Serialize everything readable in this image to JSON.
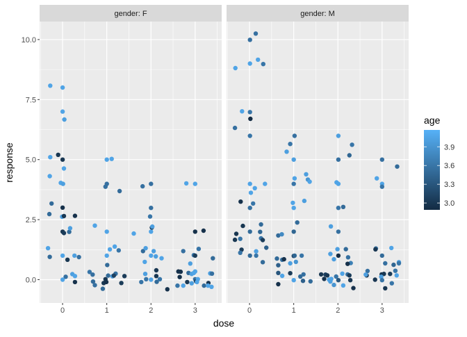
{
  "chart_data": {
    "type": "scatter",
    "xlabel": "dose",
    "ylabel": "response",
    "xlim": [
      -0.52,
      3.6
    ],
    "ylim": [
      -0.97,
      10.75
    ],
    "x_ticks": [
      "0",
      "1",
      "2",
      "3"
    ],
    "y_ticks": [
      "0.0",
      "2.5",
      "5.0",
      "7.5",
      "10.0"
    ],
    "grid": true,
    "legend": {
      "title": "age",
      "placement": "right",
      "range": [
        2.89,
        4.17
      ],
      "ticks": [
        "3.0",
        "3.3",
        "3.6",
        "3.9"
      ],
      "low_color": "#132B43",
      "high_color": "#56B1F7"
    },
    "point_fields": [
      "dose",
      "response",
      "age"
    ],
    "facets": [
      {
        "label": "gender: F",
        "points": [
          [
            -0.28,
            8.08,
            4.05
          ],
          [
            0,
            8.0,
            4.05
          ],
          [
            0,
            7.0,
            4.05
          ],
          [
            0.04,
            6.67,
            4.0
          ],
          [
            -0.28,
            5.1,
            4.05
          ],
          [
            -0.1,
            5.2,
            3.0
          ],
          [
            0,
            5.0,
            3.0
          ],
          [
            0.03,
            4.63,
            4.05
          ],
          [
            -0.29,
            4.31,
            4.05
          ],
          [
            -0.04,
            4.03,
            4.05
          ],
          [
            0.01,
            3.99,
            4.0
          ],
          [
            -0.25,
            3.17,
            3.5
          ],
          [
            0,
            3.0,
            2.95
          ],
          [
            -0.3,
            2.73,
            3.5
          ],
          [
            -0.01,
            2.62,
            4.0
          ],
          [
            0.03,
            2.65,
            3.0
          ],
          [
            0.28,
            2.66,
            2.95
          ],
          [
            0,
            2.0,
            3.0
          ],
          [
            0.03,
            1.94,
            3.05
          ],
          [
            0.15,
            1.99,
            3.5
          ],
          [
            0.17,
            2.14,
            4.0
          ],
          [
            -0.33,
            1.31,
            4.05
          ],
          [
            -0.29,
            0.95,
            3.5
          ],
          [
            0,
            1.0,
            4.05
          ],
          [
            0.11,
            0.83,
            3.0
          ],
          [
            0.27,
            1.0,
            4.0
          ],
          [
            0.37,
            0.94,
            3.55
          ],
          [
            0.22,
            0.23,
            4.0
          ],
          [
            0.07,
            0.12,
            3.55
          ],
          [
            0,
            0.0,
            4.05
          ],
          [
            0.28,
            0.15,
            4.05
          ],
          [
            0.28,
            -0.1,
            2.95
          ],
          [
            1.0,
            5.0,
            4.05
          ],
          [
            1.11,
            5.03,
            4.05
          ],
          [
            1.0,
            3.99,
            3.55
          ],
          [
            0.97,
            3.87,
            3.55
          ],
          [
            1.29,
            3.69,
            3.5
          ],
          [
            0.73,
            2.25,
            4.05
          ],
          [
            1.0,
            2.0,
            4.05
          ],
          [
            1.07,
            1.26,
            4.05
          ],
          [
            1.18,
            1.38,
            4.05
          ],
          [
            1.27,
            1.22,
            3.6
          ],
          [
            1.0,
            1.0,
            4.05
          ],
          [
            1.01,
            0.61,
            3.5
          ],
          [
            0.61,
            0.32,
            3.6
          ],
          [
            0.68,
            0.21,
            3.55
          ],
          [
            0.69,
            -0.08,
            3.5
          ],
          [
            0.73,
            -0.23,
            3.55
          ],
          [
            0.91,
            -0.38,
            3.5
          ],
          [
            0.93,
            -0.14,
            3.0
          ],
          [
            0.97,
            0.02,
            3.0
          ],
          [
            0.99,
            -0.1,
            2.95
          ],
          [
            1.03,
            0.17,
            3.5
          ],
          [
            1.13,
            0.14,
            4.0
          ],
          [
            1.2,
            0.25,
            3.55
          ],
          [
            1.16,
            0.17,
            3.1
          ],
          [
            1.33,
            -0.14,
            3.05
          ],
          [
            1.4,
            0.15,
            3.05
          ],
          [
            1.81,
            3.89,
            3.55
          ],
          [
            2.0,
            3.99,
            3.55
          ],
          [
            2.0,
            2.99,
            3.55
          ],
          [
            1.98,
            2.63,
            3.6
          ],
          [
            2.02,
            2.17,
            3.0
          ],
          [
            2.03,
            2.21,
            4.0
          ],
          [
            2.0,
            2.0,
            4.05
          ],
          [
            1.61,
            1.92,
            4.05
          ],
          [
            1.82,
            1.19,
            3.5
          ],
          [
            1.88,
            1.31,
            4.0
          ],
          [
            2.06,
            1.19,
            4.0
          ],
          [
            2.0,
            1.0,
            4.05
          ],
          [
            2.11,
            0.97,
            4.0
          ],
          [
            2.24,
            0.89,
            4.05
          ],
          [
            1.86,
            0.74,
            4.05
          ],
          [
            2.12,
            0.39,
            3.0
          ],
          [
            1.87,
            0.24,
            4.0
          ],
          [
            1.89,
            0.02,
            3.6
          ],
          [
            1.78,
            -0.1,
            3.6
          ],
          [
            2.0,
            0.0,
            4.05
          ],
          [
            2.12,
            0.15,
            3.0
          ],
          [
            2.13,
            -0.09,
            3.5
          ],
          [
            2.2,
            0.02,
            3.6
          ],
          [
            2.37,
            -0.4,
            2.95
          ],
          [
            2.8,
            4.01,
            4.05
          ],
          [
            3.0,
            3.99,
            4.05
          ],
          [
            3.0,
            2.0,
            2.95
          ],
          [
            3.19,
            2.04,
            2.95
          ],
          [
            3.08,
            1.28,
            3.6
          ],
          [
            2.73,
            1.19,
            3.55
          ],
          [
            2.97,
            1.02,
            3.6
          ],
          [
            3.0,
            1.0,
            3.05
          ],
          [
            3.4,
            0.89,
            3.5
          ],
          [
            2.89,
            0.67,
            4.0
          ],
          [
            2.62,
            0.34,
            2.95
          ],
          [
            2.67,
            0.33,
            2.95
          ],
          [
            2.65,
            0.11,
            2.95
          ],
          [
            2.85,
            0.28,
            3.5
          ],
          [
            2.92,
            0.24,
            4.0
          ],
          [
            2.97,
            0.28,
            4.05
          ],
          [
            3.0,
            0.34,
            4.05
          ],
          [
            3.34,
            0.26,
            4.0
          ],
          [
            3.38,
            0.25,
            3.55
          ],
          [
            2.82,
            -0.1,
            3.0
          ],
          [
            2.6,
            -0.25,
            3.6
          ],
          [
            2.73,
            -0.25,
            4.05
          ],
          [
            2.92,
            -0.15,
            4.0
          ],
          [
            3.0,
            0.02,
            3.55
          ],
          [
            3.02,
            -0.07,
            3.0
          ],
          [
            3.06,
            0.02,
            4.05
          ],
          [
            3.04,
            -0.1,
            4.05
          ],
          [
            3.2,
            -0.25,
            3.5
          ],
          [
            3.3,
            -0.14,
            3.0
          ],
          [
            3.29,
            -0.25,
            4.05
          ],
          [
            3.37,
            -0.3,
            4.05
          ]
        ]
      },
      {
        "label": "gender: M",
        "points": [
          [
            0.14,
            10.25,
            3.55
          ],
          [
            0.01,
            9.99,
            3.55
          ],
          [
            0.01,
            9.0,
            4.05
          ],
          [
            0.19,
            9.16,
            4.05
          ],
          [
            0.31,
            8.98,
            3.6
          ],
          [
            -0.32,
            8.81,
            4.05
          ],
          [
            -0.17,
            7.01,
            4.05
          ],
          [
            0.01,
            6.98,
            3.6
          ],
          [
            0.02,
            6.7,
            2.9
          ],
          [
            -0.33,
            6.32,
            3.55
          ],
          [
            0.01,
            5.99,
            3.6
          ],
          [
            0.01,
            3.99,
            4.05
          ],
          [
            0.12,
            3.81,
            4.05
          ],
          [
            0.35,
            3.99,
            4.05
          ],
          [
            0.03,
            3.62,
            4.05
          ],
          [
            0.08,
            3.17,
            3.6
          ],
          [
            -0.2,
            3.25,
            2.95
          ],
          [
            0.01,
            2.99,
            3.55
          ],
          [
            -0.15,
            2.24,
            3.0
          ],
          [
            0.26,
            2.3,
            3.5
          ],
          [
            0.01,
            2.0,
            3.5
          ],
          [
            0.24,
            1.99,
            3.45
          ],
          [
            -0.3,
            1.91,
            3.0
          ],
          [
            -0.33,
            1.66,
            3.0
          ],
          [
            -0.21,
            1.7,
            3.6
          ],
          [
            0.26,
            1.72,
            3.6
          ],
          [
            0.3,
            1.65,
            3.05
          ],
          [
            0.38,
            1.33,
            3.4
          ],
          [
            -0.18,
            1.25,
            3.05
          ],
          [
            -0.21,
            1.12,
            3.6
          ],
          [
            0.15,
            1.18,
            4.0
          ],
          [
            0.01,
            1.0,
            3.5
          ],
          [
            0.15,
            1.0,
            3.6
          ],
          [
            0.3,
            0.73,
            3.5
          ],
          [
            1.02,
            5.99,
            3.55
          ],
          [
            0.92,
            5.65,
            3.6
          ],
          [
            0.84,
            5.33,
            4.0
          ],
          [
            1.0,
            5.0,
            4.0
          ],
          [
            1.28,
            4.39,
            4.0
          ],
          [
            1.32,
            4.17,
            3.9
          ],
          [
            1.36,
            4.08,
            4.05
          ],
          [
            1.02,
            4.22,
            4.05
          ],
          [
            1.0,
            3.99,
            3.6
          ],
          [
            1.24,
            3.28,
            4.0
          ],
          [
            0.98,
            3.2,
            4.05
          ],
          [
            1.0,
            2.99,
            4.05
          ],
          [
            1.08,
            2.38,
            3.5
          ],
          [
            1.0,
            2.0,
            3.45
          ],
          [
            0.65,
            1.84,
            3.5
          ],
          [
            0.73,
            1.89,
            3.8
          ],
          [
            0.62,
            0.88,
            3.5
          ],
          [
            0.74,
            0.83,
            3.55
          ],
          [
            0.78,
            0.85,
            2.95
          ],
          [
            0.65,
            0.6,
            3.4
          ],
          [
            0.92,
            0.68,
            4.0
          ],
          [
            1.0,
            0.99,
            3.1
          ],
          [
            1.02,
            1.0,
            3.45
          ],
          [
            1.05,
            0.74,
            3.9
          ],
          [
            1.18,
            1.0,
            3.6
          ],
          [
            0.65,
            0.28,
            3.3
          ],
          [
            0.92,
            0.27,
            3.05
          ],
          [
            0.74,
            0.16,
            4.05
          ],
          [
            1.0,
            -0.02,
            4.05
          ],
          [
            1.15,
            0.13,
            3.5
          ],
          [
            1.22,
            0.22,
            3.55
          ],
          [
            1.21,
            -0.05,
            3.4
          ],
          [
            1.38,
            -0.07,
            3.5
          ],
          [
            0.65,
            -0.19,
            2.95
          ],
          [
            2.01,
            5.99,
            4.0
          ],
          [
            2.32,
            5.62,
            3.6
          ],
          [
            2.26,
            5.18,
            3.45
          ],
          [
            2.01,
            5.0,
            3.55
          ],
          [
            1.97,
            4.05,
            4.05
          ],
          [
            2.01,
            3.99,
            4.05
          ],
          [
            2.01,
            2.99,
            3.6
          ],
          [
            2.12,
            3.03,
            3.5
          ],
          [
            1.84,
            2.22,
            4.0
          ],
          [
            2.01,
            2.0,
            3.55
          ],
          [
            1.99,
            1.27,
            4.0
          ],
          [
            2.18,
            1.27,
            3.5
          ],
          [
            1.83,
            1.07,
            4.0
          ],
          [
            2.01,
            1.0,
            2.9
          ],
          [
            2.23,
            0.93,
            3.55
          ],
          [
            1.91,
            0.85,
            4.0
          ],
          [
            2.29,
            0.69,
            3.7
          ],
          [
            2.22,
            0.66,
            2.95
          ],
          [
            1.62,
            0.22,
            3.0
          ],
          [
            1.72,
            0.21,
            3.1
          ],
          [
            1.76,
            0.18,
            3.0
          ],
          [
            1.69,
            0.03,
            2.95
          ],
          [
            1.8,
            0.0,
            4.05
          ],
          [
            1.85,
            0.03,
            4.05
          ],
          [
            1.83,
            -0.08,
            4.0
          ],
          [
            1.96,
            0.13,
            3.6
          ],
          [
            2.1,
            0.25,
            4.05
          ],
          [
            2.22,
            0.22,
            3.55
          ],
          [
            2.26,
            0.18,
            3.05
          ],
          [
            2.01,
            -0.02,
            3.3
          ],
          [
            1.91,
            -0.22,
            3.9
          ],
          [
            2.12,
            -0.24,
            4.05
          ],
          [
            2.28,
            -0.02,
            3.0
          ],
          [
            2.35,
            -0.35,
            2.95
          ],
          [
            3.0,
            5.0,
            3.55
          ],
          [
            3.34,
            4.71,
            3.5
          ],
          [
            2.88,
            4.22,
            4.05
          ],
          [
            3.0,
            3.99,
            4.05
          ],
          [
            3.0,
            3.87,
            3.6
          ],
          [
            2.86,
            1.3,
            3.55
          ],
          [
            2.85,
            1.26,
            3.0
          ],
          [
            3.21,
            1.32,
            4.05
          ],
          [
            3.0,
            1.0,
            3.5
          ],
          [
            3.07,
            0.68,
            3.55
          ],
          [
            3.26,
            0.62,
            3.45
          ],
          [
            3.38,
            0.73,
            4.0
          ],
          [
            3.38,
            0.68,
            3.6
          ],
          [
            2.67,
            0.36,
            3.55
          ],
          [
            2.65,
            0.18,
            3.0
          ],
          [
            2.63,
            0.21,
            4.0
          ],
          [
            2.84,
            0.0,
            3.0
          ],
          [
            2.99,
            0.22,
            2.95
          ],
          [
            3.04,
            0.24,
            3.0
          ],
          [
            2.98,
            0.12,
            4.0
          ],
          [
            3.0,
            -0.02,
            3.6
          ],
          [
            3.18,
            0.24,
            3.05
          ],
          [
            3.3,
            0.37,
            3.6
          ],
          [
            3.33,
            0.18,
            4.05
          ],
          [
            3.22,
            -0.15,
            3.6
          ],
          [
            3.07,
            -0.36,
            3.0
          ]
        ]
      }
    ]
  }
}
